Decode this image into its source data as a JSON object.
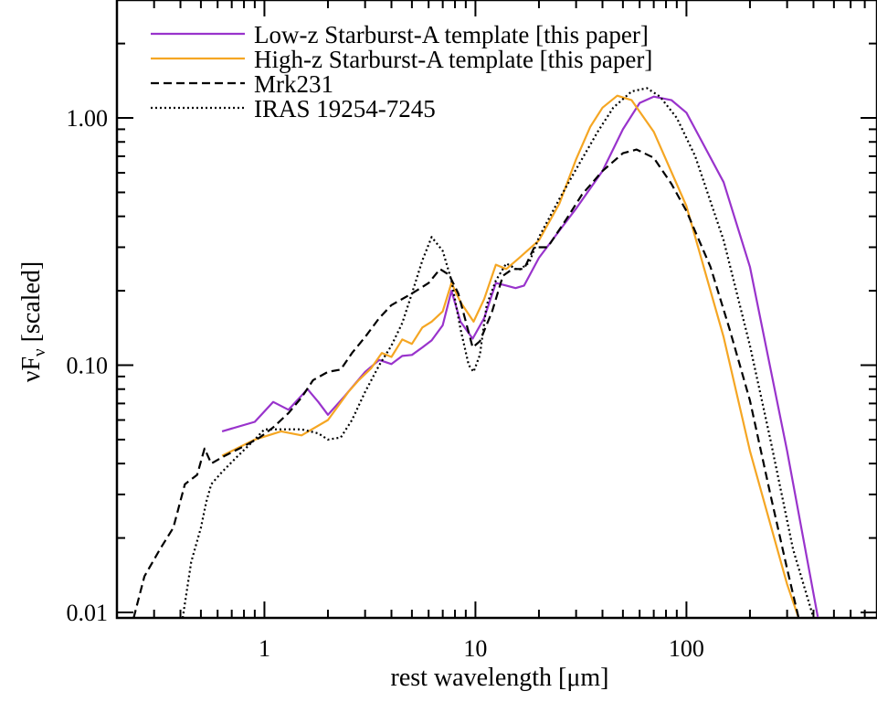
{
  "chart_data": {
    "type": "line",
    "title": "",
    "xlabel": "rest wavelength [μm]",
    "ylabel_main": "νF",
    "ylabel_sub": "ν",
    "ylabel_rest": " [scaled]",
    "x_scale": "log",
    "y_scale": "log",
    "xlim": [
      0.2,
      800
    ],
    "ylim": [
      0.0095,
      3.0
    ],
    "x_ticks": [
      {
        "value": 1,
        "label": "1"
      },
      {
        "value": 10,
        "label": "10"
      },
      {
        "value": 100,
        "label": "100"
      }
    ],
    "y_ticks": [
      {
        "value": 0.01,
        "label": "0.01"
      },
      {
        "value": 0.1,
        "label": "0.10"
      },
      {
        "value": 1.0,
        "label": "1.00"
      }
    ],
    "legend_position": "top-left",
    "series": [
      {
        "name": "Low-z Starburst-A template [this paper]",
        "color": "#9933cc",
        "dash": "solid",
        "points": [
          [
            0.63,
            0.054
          ],
          [
            0.9,
            0.059
          ],
          [
            1.1,
            0.071
          ],
          [
            1.3,
            0.066
          ],
          [
            1.6,
            0.08
          ],
          [
            1.8,
            0.071
          ],
          [
            2.0,
            0.063
          ],
          [
            2.4,
            0.075
          ],
          [
            3.0,
            0.094
          ],
          [
            3.5,
            0.105
          ],
          [
            4.0,
            0.101
          ],
          [
            4.5,
            0.109
          ],
          [
            5.0,
            0.11
          ],
          [
            5.6,
            0.118
          ],
          [
            6.2,
            0.126
          ],
          [
            7.0,
            0.145
          ],
          [
            7.7,
            0.2
          ],
          [
            8.5,
            0.15
          ],
          [
            9.7,
            0.128
          ],
          [
            11.0,
            0.155
          ],
          [
            12.5,
            0.215
          ],
          [
            14.0,
            0.21
          ],
          [
            15.5,
            0.205
          ],
          [
            17.0,
            0.21
          ],
          [
            20.0,
            0.272
          ],
          [
            25.0,
            0.35
          ],
          [
            30.0,
            0.43
          ],
          [
            40.0,
            0.61
          ],
          [
            50.0,
            0.9
          ],
          [
            60.0,
            1.15
          ],
          [
            70.0,
            1.22
          ],
          [
            85.0,
            1.18
          ],
          [
            100.0,
            1.05
          ],
          [
            150.0,
            0.55
          ],
          [
            200.0,
            0.25
          ],
          [
            300.0,
            0.045
          ],
          [
            420.0,
            0.0095
          ]
        ]
      },
      {
        "name": "High-z Starburst-A template [this paper]",
        "color": "#f5a623",
        "dash": "solid",
        "points": [
          [
            0.63,
            0.043
          ],
          [
            0.9,
            0.05
          ],
          [
            1.2,
            0.054
          ],
          [
            1.5,
            0.052
          ],
          [
            2.0,
            0.06
          ],
          [
            2.5,
            0.078
          ],
          [
            2.8,
            0.087
          ],
          [
            3.2,
            0.097
          ],
          [
            3.6,
            0.112
          ],
          [
            4.0,
            0.108
          ],
          [
            4.5,
            0.127
          ],
          [
            5.0,
            0.122
          ],
          [
            5.6,
            0.142
          ],
          [
            6.2,
            0.15
          ],
          [
            7.0,
            0.165
          ],
          [
            7.7,
            0.215
          ],
          [
            8.5,
            0.18
          ],
          [
            9.8,
            0.15
          ],
          [
            11.0,
            0.185
          ],
          [
            12.5,
            0.255
          ],
          [
            14.0,
            0.245
          ],
          [
            16.0,
            0.27
          ],
          [
            20.0,
            0.32
          ],
          [
            25.0,
            0.45
          ],
          [
            30.0,
            0.68
          ],
          [
            35.0,
            0.92
          ],
          [
            40.0,
            1.1
          ],
          [
            47.0,
            1.23
          ],
          [
            55.0,
            1.18
          ],
          [
            70.0,
            0.88
          ],
          [
            100.0,
            0.44
          ],
          [
            150.0,
            0.13
          ],
          [
            200.0,
            0.045
          ],
          [
            300.0,
            0.013
          ],
          [
            340.0,
            0.0095
          ]
        ]
      },
      {
        "name": "Mrk231",
        "color": "#000000",
        "dash": "dashed",
        "points": [
          [
            0.24,
            0.0095
          ],
          [
            0.27,
            0.014
          ],
          [
            0.32,
            0.018
          ],
          [
            0.37,
            0.022
          ],
          [
            0.42,
            0.033
          ],
          [
            0.48,
            0.036
          ],
          [
            0.52,
            0.046
          ],
          [
            0.56,
            0.04
          ],
          [
            0.65,
            0.043
          ],
          [
            0.8,
            0.047
          ],
          [
            0.95,
            0.051
          ],
          [
            1.1,
            0.056
          ],
          [
            1.3,
            0.064
          ],
          [
            1.5,
            0.074
          ],
          [
            1.7,
            0.087
          ],
          [
            2.0,
            0.094
          ],
          [
            2.3,
            0.096
          ],
          [
            2.6,
            0.112
          ],
          [
            3.0,
            0.13
          ],
          [
            3.5,
            0.155
          ],
          [
            4.0,
            0.175
          ],
          [
            5.0,
            0.195
          ],
          [
            6.0,
            0.215
          ],
          [
            6.8,
            0.245
          ],
          [
            7.5,
            0.232
          ],
          [
            8.3,
            0.195
          ],
          [
            9.0,
            0.15
          ],
          [
            9.7,
            0.118
          ],
          [
            10.5,
            0.125
          ],
          [
            12.0,
            0.165
          ],
          [
            13.5,
            0.23
          ],
          [
            15.0,
            0.245
          ],
          [
            17.0,
            0.245
          ],
          [
            19.0,
            0.3
          ],
          [
            22.0,
            0.3
          ],
          [
            27.0,
            0.39
          ],
          [
            32.0,
            0.49
          ],
          [
            40.0,
            0.61
          ],
          [
            50.0,
            0.72
          ],
          [
            58.0,
            0.745
          ],
          [
            70.0,
            0.69
          ],
          [
            85.0,
            0.54
          ],
          [
            100.0,
            0.42
          ],
          [
            130.0,
            0.25
          ],
          [
            160.0,
            0.14
          ],
          [
            200.0,
            0.072
          ],
          [
            250.0,
            0.03
          ],
          [
            300.0,
            0.015
          ],
          [
            340.0,
            0.0095
          ]
        ]
      },
      {
        "name": "IRAS 19254-7245",
        "color": "#000000",
        "dash": "dotted",
        "points": [
          [
            0.41,
            0.0095
          ],
          [
            0.45,
            0.016
          ],
          [
            0.5,
            0.022
          ],
          [
            0.53,
            0.028
          ],
          [
            0.56,
            0.033
          ],
          [
            0.63,
            0.037
          ],
          [
            0.75,
            0.043
          ],
          [
            0.9,
            0.05
          ],
          [
            1.0,
            0.055
          ],
          [
            1.2,
            0.055
          ],
          [
            1.5,
            0.055
          ],
          [
            1.8,
            0.053
          ],
          [
            2.0,
            0.05
          ],
          [
            2.3,
            0.051
          ],
          [
            2.6,
            0.06
          ],
          [
            3.0,
            0.078
          ],
          [
            3.5,
            0.1
          ],
          [
            4.0,
            0.12
          ],
          [
            4.5,
            0.148
          ],
          [
            5.0,
            0.195
          ],
          [
            5.6,
            0.265
          ],
          [
            6.2,
            0.33
          ],
          [
            7.0,
            0.29
          ],
          [
            7.7,
            0.22
          ],
          [
            8.5,
            0.14
          ],
          [
            9.3,
            0.1
          ],
          [
            9.8,
            0.094
          ],
          [
            10.5,
            0.11
          ],
          [
            11.3,
            0.175
          ],
          [
            12.5,
            0.22
          ],
          [
            14.0,
            0.258
          ],
          [
            16.0,
            0.242
          ],
          [
            18.0,
            0.26
          ],
          [
            20.0,
            0.33
          ],
          [
            25.0,
            0.47
          ],
          [
            30.0,
            0.62
          ],
          [
            38.0,
            0.88
          ],
          [
            45.0,
            1.1
          ],
          [
            55.0,
            1.28
          ],
          [
            65.0,
            1.32
          ],
          [
            75.0,
            1.22
          ],
          [
            90.0,
            1.0
          ],
          [
            110.0,
            0.7
          ],
          [
            150.0,
            0.32
          ],
          [
            200.0,
            0.12
          ],
          [
            250.0,
            0.05
          ],
          [
            320.0,
            0.018
          ],
          [
            400.0,
            0.0095
          ]
        ]
      }
    ]
  }
}
